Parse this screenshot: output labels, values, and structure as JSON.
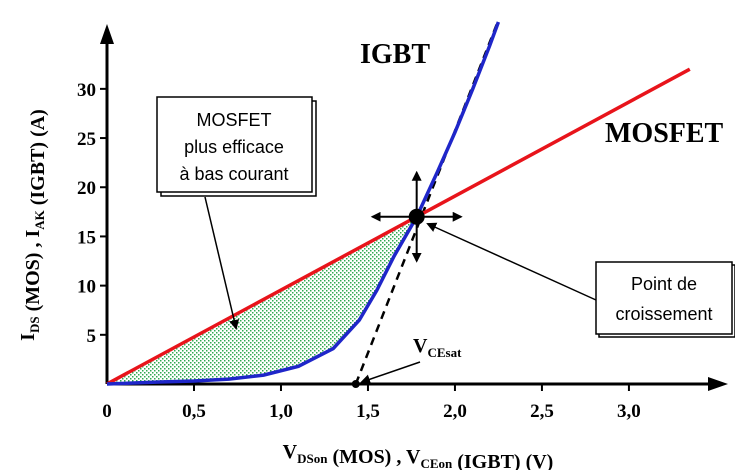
{
  "chart_data": {
    "type": "line",
    "xlabel": {
      "parts": [
        {
          "t": "V"
        },
        {
          "t": "DSon",
          "sub": true
        },
        {
          "t": " (MOS) , V"
        },
        {
          "t": "CEon",
          "sub": true
        },
        {
          "t": " (IGBT) (V)"
        }
      ]
    },
    "ylabel": {
      "parts": [
        {
          "t": "I"
        },
        {
          "t": "DS",
          "sub": true
        },
        {
          "t": " (MOS) , I"
        },
        {
          "t": "AK",
          "sub": true
        },
        {
          "t": " (IGBT) (A)"
        }
      ]
    },
    "xlim": [
      0,
      3.42
    ],
    "ylim": [
      0,
      37
    ],
    "x_ticks": [
      {
        "value": 0,
        "label": "0"
      },
      {
        "value": 0.5,
        "label": "0,5"
      },
      {
        "value": 1.0,
        "label": "1,0"
      },
      {
        "value": 1.5,
        "label": "1,5"
      },
      {
        "value": 2.0,
        "label": "2,0"
      },
      {
        "value": 2.5,
        "label": "2,5"
      },
      {
        "value": 3.0,
        "label": "3,0"
      }
    ],
    "y_ticks": [
      {
        "value": 5,
        "label": "5"
      },
      {
        "value": 10,
        "label": "10"
      },
      {
        "value": 15,
        "label": "15"
      },
      {
        "value": 20,
        "label": "20"
      },
      {
        "value": 25,
        "label": "25"
      },
      {
        "value": 30,
        "label": "30"
      }
    ],
    "grid": false,
    "series": [
      {
        "name": "MOSFET",
        "color": "#e8141b",
        "x": [
          0,
          3.35
        ],
        "y": [
          0,
          32
        ]
      },
      {
        "name": "IGBT",
        "color": "#1f26c9",
        "x": [
          0,
          0.3,
          0.5,
          0.7,
          0.9,
          1.1,
          1.3,
          1.45,
          1.55,
          1.65,
          1.78,
          1.9,
          2.0,
          2.1,
          2.2,
          2.25
        ],
        "y": [
          0,
          0.2,
          0.3,
          0.5,
          0.9,
          1.8,
          3.6,
          6.5,
          9.5,
          13.0,
          17.0,
          21.6,
          25.6,
          29.9,
          34.4,
          36.8
        ]
      }
    ],
    "tangent": {
      "style": "dashed",
      "color": "#000000",
      "x": [
        1.43,
        2.25
      ],
      "y": [
        0,
        37
      ]
    },
    "crossing_point": {
      "x": 1.78,
      "y": 17
    },
    "vcesat": {
      "x": 1.43,
      "label_main": "V",
      "label_sub": "CEsat"
    },
    "annotations": {
      "igbt_label": "IGBT",
      "mosfet_label": "MOSFET",
      "box_mosfet_lines": [
        "MOSFET",
        "plus efficace",
        "à bas courant"
      ],
      "box_point_lines": [
        "Point de",
        "croissement"
      ]
    },
    "colors": {
      "mosfet": "#e8141b",
      "igbt": "#1f26c9",
      "hatch": "#2fa84f"
    }
  }
}
